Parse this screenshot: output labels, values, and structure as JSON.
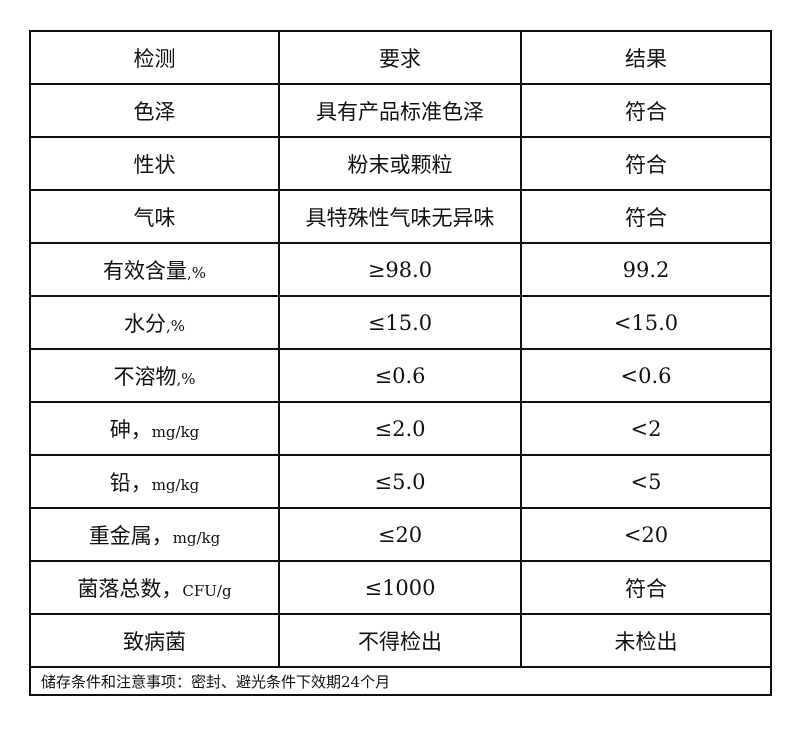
{
  "headers": [
    "检测",
    "要求",
    "结果"
  ],
  "rows": [
    {
      "item": "色泽",
      "unit": "",
      "requirement": "具有产品标准色泽",
      "result": "符合"
    },
    {
      "item": "性状",
      "unit": "",
      "requirement": "粉末或颗粒",
      "result": "符合"
    },
    {
      "item": "气味",
      "unit": "",
      "requirement": "具特殊性气味无异味",
      "result": "符合"
    },
    {
      "item": "有效含量",
      "unit": ",%",
      "requirement": "≥98.0",
      "result": "99.2"
    },
    {
      "item": "水分",
      "unit": ",%",
      "requirement": "≤15.0",
      "result": "<15.0"
    },
    {
      "item": "不溶物",
      "unit": ",%",
      "requirement": "≤0.6",
      "result": "<0.6"
    },
    {
      "item": "砷，",
      "unit": "mg/kg",
      "requirement": "≤2.0",
      "result": "<2"
    },
    {
      "item": "铅，",
      "unit": "mg/kg",
      "requirement": "≤5.0",
      "result": "<5"
    },
    {
      "item": "重金属，",
      "unit": "mg/kg",
      "requirement": "≤20",
      "result": "<20"
    },
    {
      "item": "菌落总数，",
      "unit": "CFU/g",
      "requirement": "≤1000",
      "result": "符合"
    },
    {
      "item": "致病菌",
      "unit": "",
      "requirement": "不得检出",
      "result": "未检出"
    }
  ],
  "footer": "储存条件和注意事项：密封、避光条件下效期24个月"
}
